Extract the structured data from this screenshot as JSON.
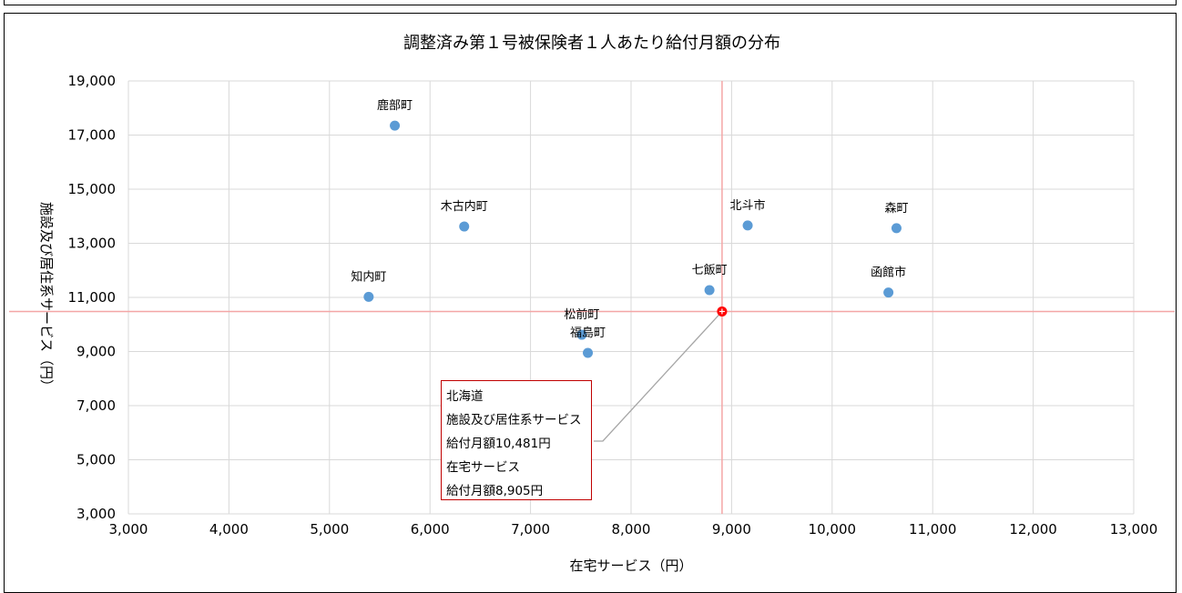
{
  "chart_data": {
    "type": "scatter",
    "title": "調整済み第１号被保険者１人あたり給付月額の分布",
    "xlabel": "在宅サービス（円）",
    "ylabel": "施設及び居住系サービス（円）",
    "xlim": [
      3000,
      13000
    ],
    "ylim": [
      3000,
      19000
    ],
    "x_ticks": [
      3000,
      4000,
      5000,
      6000,
      7000,
      8000,
      9000,
      10000,
      11000,
      12000,
      13000
    ],
    "y_ticks": [
      3000,
      5000,
      7000,
      9000,
      11000,
      13000,
      15000,
      17000,
      19000
    ],
    "x_tick_labels": [
      "3,000",
      "4,000",
      "5,000",
      "6,000",
      "7,000",
      "8,000",
      "9,000",
      "10,000",
      "11,000",
      "12,000",
      "13,000"
    ],
    "y_tick_labels": [
      "3,000",
      "5,000",
      "7,000",
      "9,000",
      "11,000",
      "13,000",
      "15,000",
      "17,000",
      "19,000"
    ],
    "grid": true,
    "points": [
      {
        "label": "鹿部町",
        "x": 5650,
        "y": 17350
      },
      {
        "label": "木古内町",
        "x": 6340,
        "y": 13620
      },
      {
        "label": "知内町",
        "x": 5390,
        "y": 11020
      },
      {
        "label": "松前町",
        "x": 7510,
        "y": 9620
      },
      {
        "label": "福島町",
        "x": 7570,
        "y": 8950
      },
      {
        "label": "七飯町",
        "x": 8780,
        "y": 11270
      },
      {
        "label": "北斗市",
        "x": 9160,
        "y": 13660
      },
      {
        "label": "森町",
        "x": 10640,
        "y": 13560
      },
      {
        "label": "函館市",
        "x": 10560,
        "y": 11180
      }
    ],
    "reference": {
      "label": "北海道",
      "x": 8905,
      "y": 10481
    },
    "callout": {
      "lines": [
        "北海道",
        "施設及び居住系サービス",
        "給付月額10,481円",
        "在宅サービス",
        "給付月額8,905円"
      ]
    },
    "colors": {
      "points": "#5b9bd5",
      "reference": "#ff0000",
      "reference_lines": "#f4a6a6",
      "callout_border": "#c00000",
      "grid": "#d9d9d9"
    }
  }
}
